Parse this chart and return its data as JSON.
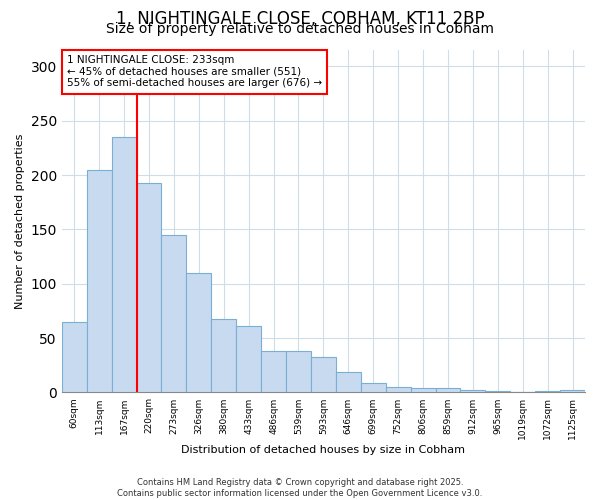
{
  "title_line1": "1, NIGHTINGALE CLOSE, COBHAM, KT11 2BP",
  "title_line2": "Size of property relative to detached houses in Cobham",
  "xlabel": "Distribution of detached houses by size in Cobham",
  "ylabel": "Number of detached properties",
  "bar_labels": [
    "60sqm",
    "113sqm",
    "167sqm",
    "220sqm",
    "273sqm",
    "326sqm",
    "380sqm",
    "433sqm",
    "486sqm",
    "539sqm",
    "593sqm",
    "646sqm",
    "699sqm",
    "752sqm",
    "806sqm",
    "859sqm",
    "912sqm",
    "965sqm",
    "1019sqm",
    "1072sqm",
    "1125sqm"
  ],
  "bar_values": [
    65,
    205,
    235,
    193,
    145,
    110,
    68,
    61,
    38,
    38,
    33,
    19,
    9,
    5,
    4,
    4,
    2,
    1,
    0,
    1,
    2
  ],
  "bar_color": "#c8daf0",
  "bar_edge_color": "#7aafd4",
  "annotation_line1": "1 NIGHTINGALE CLOSE: 233sqm",
  "annotation_line2": "← 45% of detached houses are smaller (551)",
  "annotation_line3": "55% of semi-detached houses are larger (676) →",
  "redline_bar_index": 3,
  "annotation_fontsize": 7.5,
  "title_fontsize1": 12,
  "title_fontsize2": 10,
  "ylim": [
    0,
    315
  ],
  "yticks": [
    0,
    50,
    100,
    150,
    200,
    250,
    300
  ],
  "footer_text": "Contains HM Land Registry data © Crown copyright and database right 2025.\nContains public sector information licensed under the Open Government Licence v3.0.",
  "background_color": "#ffffff",
  "grid_color": "#d0dce8"
}
